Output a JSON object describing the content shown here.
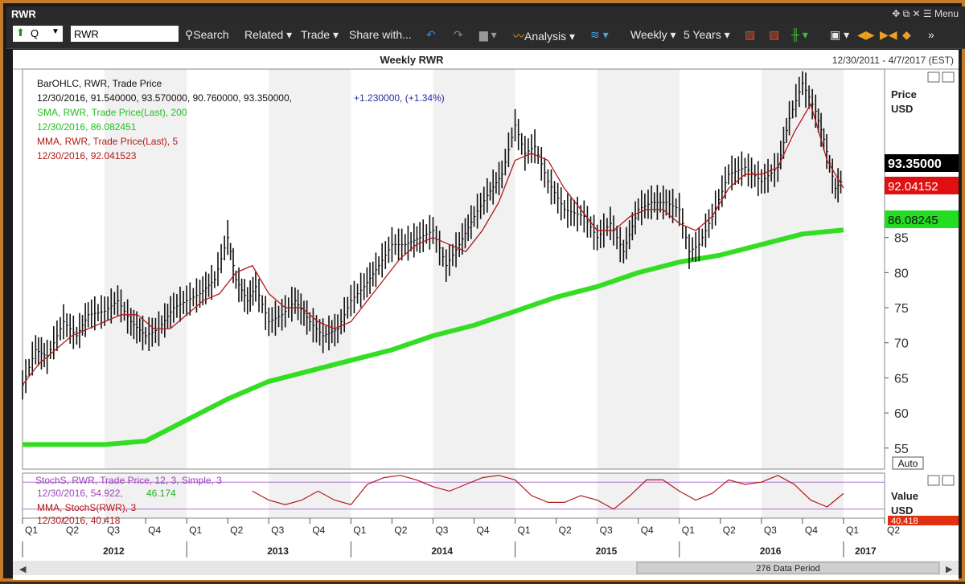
{
  "window": {
    "title": "RWR",
    "menu_label": "Menu"
  },
  "toolbar": {
    "security_type": "Q",
    "symbol": "RWR",
    "search": "Search",
    "related": "Related",
    "trade": "Trade",
    "share": "Share with...",
    "analysis": "Analysis",
    "interval": "Weekly",
    "range": "5 Years"
  },
  "chart_header": {
    "title": "Weekly RWR",
    "date_range": "12/30/2011 - 4/7/2017 (EST)"
  },
  "legend": {
    "bar_line1": "BarOHLC, RWR, Trade Price",
    "bar_line2": "12/30/2016, 91.540000, 93.570000, 90.760000, 93.350000,",
    "bar_change": "+1.230000, (+1.34%)",
    "sma_line1": "SMA, RWR, Trade Price(Last), 200",
    "sma_line2": "12/30/2016, 86.082451",
    "mma_line1": "MMA, RWR, Trade Price(Last), 5",
    "mma_line2": "12/30/2016, 92.041523"
  },
  "price_axis": {
    "label1": "Price",
    "label2": "USD",
    "last_price": "93.35000",
    "mma_value": "92.04152",
    "sma_value": "86.08245",
    "auto_label": "Auto",
    "colors": {
      "last": "#000000",
      "mma": "#e01010",
      "sma": "#22dd22"
    }
  },
  "stoch_panel": {
    "legend1": "StochS, RWR, Trade Price, 12, 3, Simple, 3",
    "legend2_date": "12/30/2016, 54.922,",
    "legend2_value": "46.174",
    "legend3": "MMA, StochS(RWR), 3",
    "legend4": "12/30/2016, 40.418",
    "axis_label1": "Value",
    "axis_label2": "USD",
    "axis_value": "40.418"
  },
  "footer": {
    "data_period": "276 Data Period"
  },
  "chart_data": {
    "type": "line",
    "title": "Weekly RWR",
    "ylabel": "Price USD",
    "ylim": [
      52,
      109
    ],
    "y_ticks": [
      55,
      60,
      65,
      70,
      75,
      80,
      85
    ],
    "quarters": [
      "Q1",
      "Q2",
      "Q3",
      "Q4",
      "Q1",
      "Q2",
      "Q3",
      "Q4",
      "Q1",
      "Q2",
      "Q3",
      "Q4",
      "Q1",
      "Q2",
      "Q3",
      "Q4",
      "Q1",
      "Q2",
      "Q3",
      "Q4",
      "Q1",
      "Q2"
    ],
    "years": [
      "2012",
      "2013",
      "2014",
      "2015",
      "2016",
      "2017"
    ],
    "x_range": [
      2012.0,
      2017.25
    ],
    "price_series": {
      "name": "BarOHLC, RWR, Trade Price",
      "color": "#111111",
      "x": [
        2012.0,
        2012.08,
        2012.15,
        2012.25,
        2012.33,
        2012.4,
        2012.5,
        2012.58,
        2012.66,
        2012.75,
        2012.83,
        2012.92,
        2013.0,
        2013.08,
        2013.17,
        2013.25,
        2013.3,
        2013.37,
        2013.42,
        2013.5,
        2013.58,
        2013.66,
        2013.75,
        2013.83,
        2013.92,
        2014.0,
        2014.08,
        2014.17,
        2014.25,
        2014.33,
        2014.42,
        2014.5,
        2014.58,
        2014.66,
        2014.75,
        2014.83,
        2014.92,
        2015.0,
        2015.06,
        2015.12,
        2015.2,
        2015.3,
        2015.42,
        2015.5,
        2015.58,
        2015.66,
        2015.75,
        2015.83,
        2015.92,
        2016.0,
        2016.06,
        2016.12,
        2016.2,
        2016.3,
        2016.4,
        2016.5,
        2016.6,
        2016.67,
        2016.75,
        2016.83,
        2016.88,
        2016.95,
        2017.0
      ],
      "y": [
        64,
        69,
        68,
        73,
        71,
        74,
        74.5,
        76,
        73,
        71,
        72,
        75,
        76,
        77,
        79,
        85,
        79,
        76,
        78,
        73,
        74,
        76,
        73,
        71,
        72,
        76,
        78,
        81,
        84,
        84,
        85,
        86,
        81,
        84,
        88,
        91,
        94,
        101,
        97,
        98,
        93,
        89,
        88,
        85,
        87,
        83,
        89,
        90,
        90,
        89,
        83,
        84,
        88,
        94,
        95,
        93,
        95,
        102,
        107,
        103,
        99,
        92,
        93.35
      ]
    },
    "mma_series": {
      "name": "MMA, RWR, Trade Price(Last), 5",
      "color": "#b41818",
      "x": [
        2012.0,
        2012.1,
        2012.2,
        2012.3,
        2012.4,
        2012.5,
        2012.6,
        2012.7,
        2012.8,
        2012.9,
        2013.0,
        2013.1,
        2013.2,
        2013.3,
        2013.4,
        2013.5,
        2013.6,
        2013.7,
        2013.8,
        2013.9,
        2014.0,
        2014.1,
        2014.2,
        2014.3,
        2014.4,
        2014.5,
        2014.6,
        2014.7,
        2014.8,
        2014.9,
        2015.0,
        2015.1,
        2015.2,
        2015.3,
        2015.4,
        2015.5,
        2015.6,
        2015.7,
        2015.8,
        2015.9,
        2016.0,
        2016.1,
        2016.2,
        2016.3,
        2016.4,
        2016.5,
        2016.6,
        2016.7,
        2016.8,
        2016.9,
        2017.0
      ],
      "y": [
        64,
        67,
        69,
        71,
        72,
        73,
        74,
        74,
        72,
        72,
        74,
        76,
        77,
        80,
        81,
        77,
        75,
        75,
        73,
        72,
        73,
        76,
        79,
        82,
        84,
        85,
        84,
        83,
        86,
        90,
        96,
        97,
        96,
        92,
        89,
        86,
        86,
        88,
        89,
        89,
        87,
        86,
        88,
        92,
        94,
        94,
        95,
        100,
        104,
        96,
        92.04
      ]
    },
    "sma_series": {
      "name": "SMA, RWR, Trade Price(Last), 200",
      "color": "#33dd22",
      "x": [
        2012.0,
        2012.25,
        2012.5,
        2012.75,
        2013.0,
        2013.25,
        2013.5,
        2013.75,
        2014.0,
        2014.25,
        2014.5,
        2014.75,
        2015.0,
        2015.25,
        2015.5,
        2015.75,
        2016.0,
        2016.25,
        2016.5,
        2016.75,
        2017.0
      ],
      "y": [
        55.5,
        55.5,
        55.5,
        56,
        59,
        62,
        64.5,
        66,
        67.5,
        69,
        71,
        72.5,
        74.5,
        76.5,
        78,
        80,
        81.5,
        82.5,
        84,
        85.5,
        86.08
      ]
    },
    "stoch_series": {
      "name": "StochS, RWR, Trade Price, 12, 3, Simple, 3",
      "color": "#b41818",
      "ylim": [
        0,
        100
      ],
      "x": [
        2013.4,
        2013.5,
        2013.6,
        2013.7,
        2013.8,
        2013.9,
        2014.0,
        2014.1,
        2014.2,
        2014.3,
        2014.4,
        2014.5,
        2014.6,
        2014.7,
        2014.8,
        2014.9,
        2015.0,
        2015.1,
        2015.2,
        2015.3,
        2015.4,
        2015.5,
        2015.6,
        2015.7,
        2015.8,
        2015.9,
        2016.0,
        2016.1,
        2016.2,
        2016.3,
        2016.4,
        2016.5,
        2016.6,
        2016.7,
        2016.8,
        2016.9,
        2017.0
      ],
      "y": [
        60,
        40,
        30,
        40,
        60,
        40,
        30,
        75,
        90,
        95,
        85,
        70,
        60,
        75,
        90,
        95,
        85,
        50,
        35,
        35,
        50,
        40,
        20,
        50,
        85,
        85,
        60,
        40,
        55,
        85,
        75,
        80,
        95,
        75,
        40,
        25,
        54.9
      ]
    },
    "stoch_levels": [
      80,
      20
    ]
  }
}
